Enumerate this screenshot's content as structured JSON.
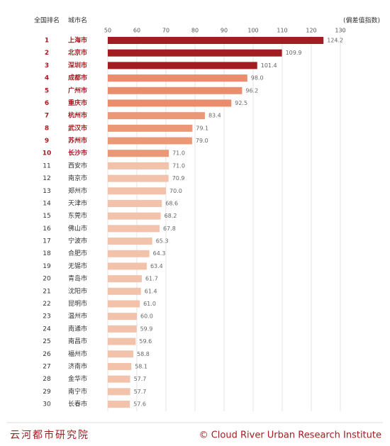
{
  "chart_data": {
    "type": "bar",
    "rank_header": "全国排名",
    "city_header": "城市名",
    "unit_label": "(偏差值指数)",
    "ranks": [
      "1",
      "2",
      "3",
      "4",
      "5",
      "6",
      "7",
      "8",
      "9",
      "10",
      "11",
      "12",
      "13",
      "14",
      "15",
      "16",
      "17",
      "18",
      "19",
      "20",
      "21",
      "22",
      "23",
      "24",
      "25",
      "26",
      "27",
      "28",
      "29",
      "30"
    ],
    "categories": [
      "上海市",
      "北京市",
      "深圳市",
      "成都市",
      "广州市",
      "重庆市",
      "杭州市",
      "武汉市",
      "苏州市",
      "长沙市",
      "西安市",
      "南京市",
      "郑州市",
      "天津市",
      "东莞市",
      "佛山市",
      "宁波市",
      "合肥市",
      "无锡市",
      "青岛市",
      "沈阳市",
      "昆明市",
      "温州市",
      "南通市",
      "南昌市",
      "福州市",
      "济南市",
      "金华市",
      "南宁市",
      "长春市"
    ],
    "values": [
      124.2,
      109.9,
      101.4,
      98.0,
      96.2,
      92.5,
      83.4,
      79.1,
      79.0,
      71.0,
      71.0,
      70.9,
      70.0,
      68.6,
      68.2,
      67.8,
      65.3,
      64.3,
      63.4,
      61.7,
      61.4,
      61.0,
      60.0,
      59.9,
      59.6,
      58.8,
      58.1,
      57.7,
      57.7,
      57.6
    ],
    "value_labels": [
      "124.2",
      "109.9",
      "101.4",
      "98.0",
      "96.2",
      "92.5",
      "83.4",
      "79.1",
      "79.0",
      "71.0",
      "71.0",
      "70.9",
      "70.0",
      "68.6",
      "68.2",
      "67.8",
      "65.3",
      "64.3",
      "63.4",
      "61.7",
      "61.4",
      "61.0",
      "60.0",
      "59.9",
      "59.6",
      "58.8",
      "58.1",
      "57.7",
      "57.7",
      "57.6"
    ],
    "colors": [
      "#a11d21",
      "#a11d21",
      "#a11d21",
      "#e98d6c",
      "#e98d6c",
      "#e98d6c",
      "#eb9877",
      "#eb9877",
      "#eb9877",
      "#eb9877",
      "#f2c2aa",
      "#f2c2aa",
      "#f2c2aa",
      "#f2c2aa",
      "#f2c2aa",
      "#f2c2aa",
      "#f2c2aa",
      "#f2c2aa",
      "#f2c2aa",
      "#f2c2aa",
      "#f2c2aa",
      "#f2c2aa",
      "#f2c2aa",
      "#f2c2aa",
      "#f2c2aa",
      "#f2c2aa",
      "#f2c2aa",
      "#f2c2aa",
      "#f2c2aa",
      "#f2c2aa"
    ],
    "highlight_count": 10,
    "xlim": [
      50,
      130
    ],
    "xticks": [
      50,
      60,
      70,
      80,
      90,
      100,
      110,
      120,
      130
    ],
    "grid": true,
    "footer_left": "云河都市研究院",
    "footer_right": "© Cloud River Urban Research Institute"
  }
}
